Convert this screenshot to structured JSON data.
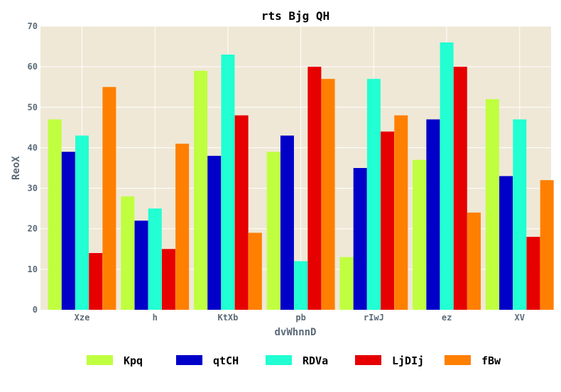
{
  "chart_data": {
    "type": "bar",
    "title": "rts Bjg QH",
    "xlabel": "dvWhnnD",
    "ylabel": "ReoX",
    "categories": [
      "Xze",
      "h",
      "KtXb",
      "pb",
      "rIwJ",
      "ez",
      "XV"
    ],
    "ylim": [
      0,
      70
    ],
    "yticks": [
      0,
      10,
      20,
      30,
      40,
      50,
      60,
      70
    ],
    "grid": true,
    "legend_position": "bottom",
    "background": "#efe8d6",
    "series": [
      {
        "name": "Kpq",
        "color": "#bfff3f",
        "values": [
          47,
          28,
          59,
          39,
          13,
          37,
          52
        ]
      },
      {
        "name": "qtCH",
        "color": "#0000c8",
        "values": [
          39,
          22,
          38,
          43,
          35,
          47,
          33
        ]
      },
      {
        "name": "RDVa",
        "color": "#21ffd3",
        "values": [
          43,
          25,
          63,
          12,
          57,
          66,
          47
        ]
      },
      {
        "name": "LjDIj",
        "color": "#e60000",
        "values": [
          14,
          15,
          48,
          60,
          44,
          60,
          18
        ]
      },
      {
        "name": "fBw",
        "color": "#ff7f00",
        "values": [
          55,
          41,
          19,
          57,
          48,
          24,
          32
        ]
      }
    ]
  }
}
